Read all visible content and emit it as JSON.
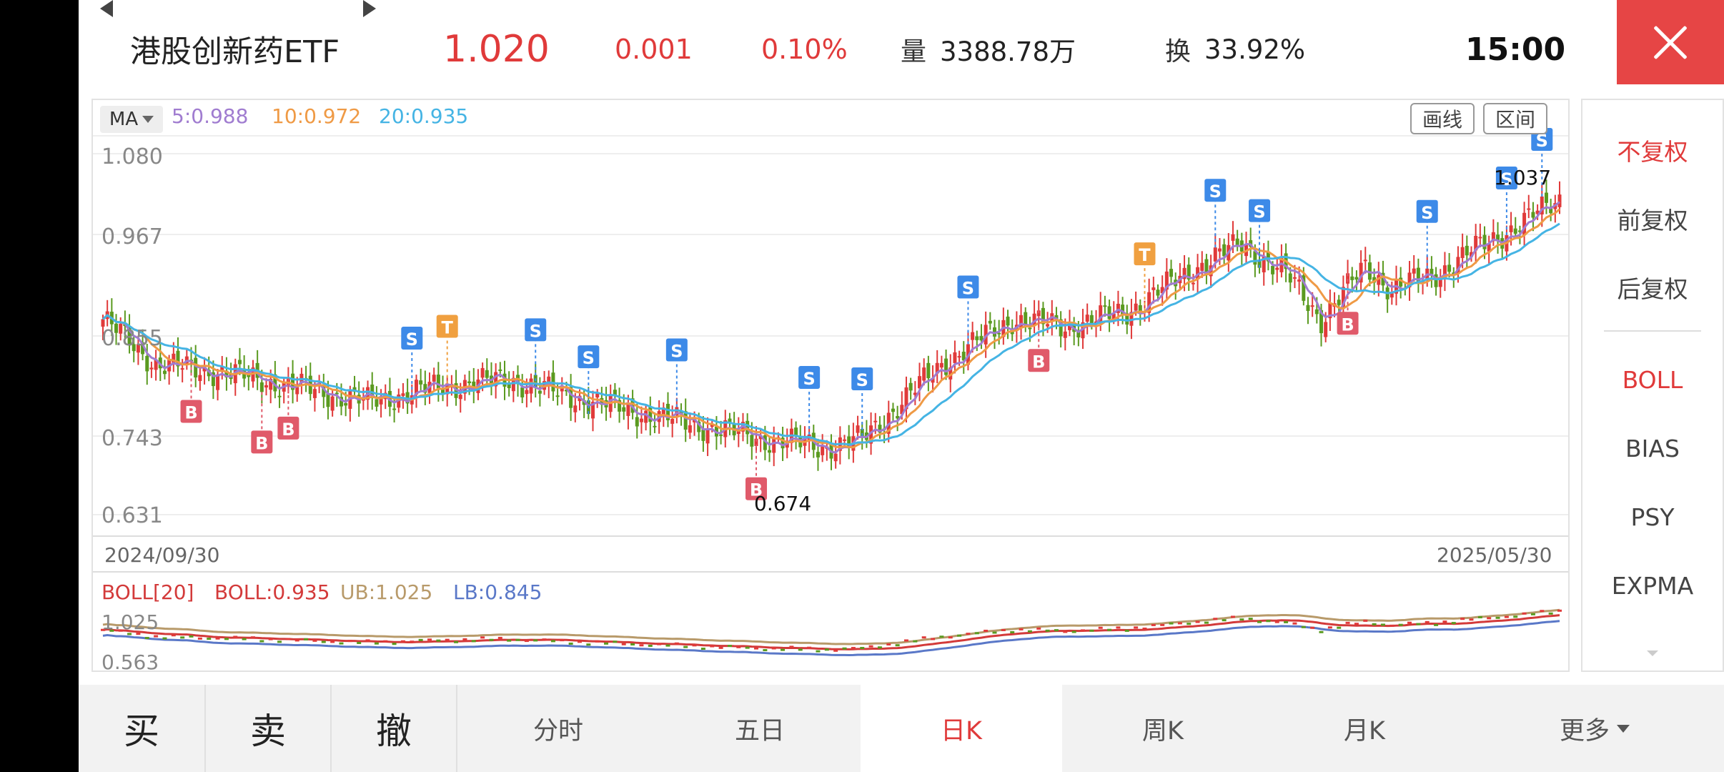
{
  "header": {
    "name": "港股创新药ETF",
    "price": "1.020",
    "change": "0.001",
    "change_pct": "0.10%",
    "volume_label": "量",
    "volume": "3388.78万",
    "turnover_label": "换",
    "turnover": "33.92%",
    "time": "15:00"
  },
  "colors": {
    "up": "#e03a3a",
    "down": "#5a9a20",
    "ma5": "#a07cd0",
    "ma10": "#ef9a45",
    "ma20": "#45b4e4",
    "boll_mid": "#d33a3a",
    "boll_ub": "#b89a6a",
    "boll_lb": "#5a78c8",
    "buy": "#e05a6a",
    "sell": "#3d8ae8",
    "t_mark": "#f0a040"
  },
  "chart": {
    "indicator_menu": "MA",
    "ma5": "5:0.988",
    "ma10": "10:0.972",
    "ma20": "20:0.935",
    "tools": {
      "draw": "画线",
      "range": "区间"
    },
    "y_ticks": [
      "1.080",
      "0.967",
      "0.855",
      "0.743",
      "0.631"
    ],
    "date_start": "2024/09/30",
    "date_end": "2025/05/30",
    "high_label": "1.037",
    "low_label": "0.674"
  },
  "boll": {
    "title": "BOLL[20]",
    "mid": "BOLL:0.935",
    "ub": "UB:1.025",
    "lb": "LB:0.845",
    "tick_top": "1.025",
    "tick_bottom": "0.563"
  },
  "chart_data": {
    "type": "candlestick",
    "ylim": [
      0.631,
      1.08
    ],
    "x_start": "2024/09/30",
    "x_end": "2025/05/30",
    "series": [
      {
        "name": "MA5",
        "last": 0.988
      },
      {
        "name": "MA10",
        "last": 0.972
      },
      {
        "name": "MA20",
        "last": 0.935
      }
    ],
    "last_close": 1.02,
    "marked_high": 1.037,
    "marked_low": 0.674,
    "boll": {
      "period": 20,
      "mid": 0.935,
      "ub": 1.025,
      "lb": 0.845
    }
  },
  "right_panel": {
    "items": [
      "不复权",
      "前复权",
      "后复权",
      "BOLL",
      "BIAS",
      "PSY",
      "EXPMA"
    ]
  },
  "bottom": {
    "buy": "买",
    "sell": "卖",
    "cancel": "撤",
    "tabs": [
      "分时",
      "五日",
      "日K",
      "周K",
      "月K"
    ],
    "more": "更多"
  }
}
